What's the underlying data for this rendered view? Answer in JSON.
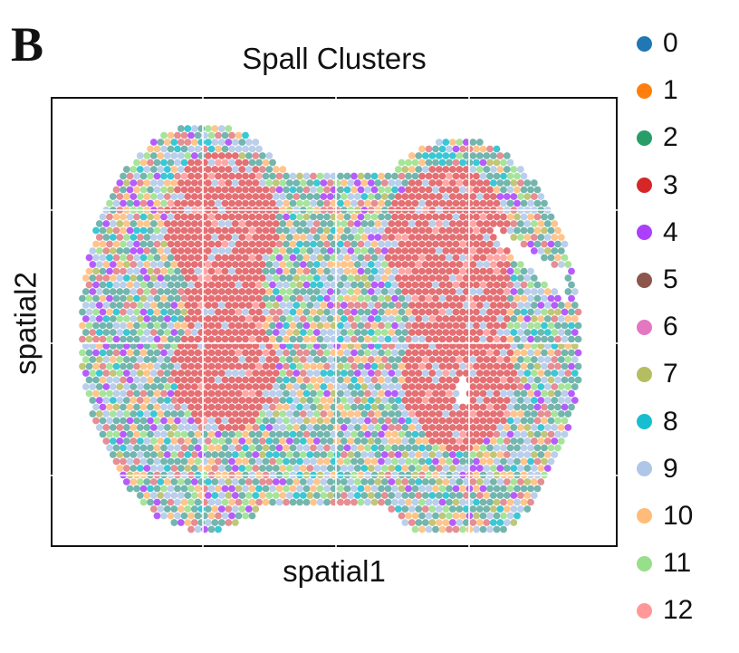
{
  "panel_label": "B",
  "chart_data": {
    "type": "scatter",
    "title": "Spall Clusters",
    "xlabel": "spatial1",
    "ylabel": "spatial2",
    "legend_position": "right",
    "grid": false,
    "clusters": [
      {
        "name": "0",
        "color": "#1f77b4"
      },
      {
        "name": "1",
        "color": "#ff7f0e"
      },
      {
        "name": "2",
        "color": "#279e68"
      },
      {
        "name": "3",
        "color": "#d62728"
      },
      {
        "name": "4",
        "color": "#aa40fc"
      },
      {
        "name": "5",
        "color": "#8c564b"
      },
      {
        "name": "6",
        "color": "#e377c2"
      },
      {
        "name": "7",
        "color": "#b5bd61"
      },
      {
        "name": "8",
        "color": "#17becf"
      },
      {
        "name": "9",
        "color": "#aec7e8"
      },
      {
        "name": "10",
        "color": "#ffbb78"
      },
      {
        "name": "11",
        "color": "#98df8a"
      },
      {
        "name": "12",
        "color": "#ff9896"
      }
    ]
  }
}
